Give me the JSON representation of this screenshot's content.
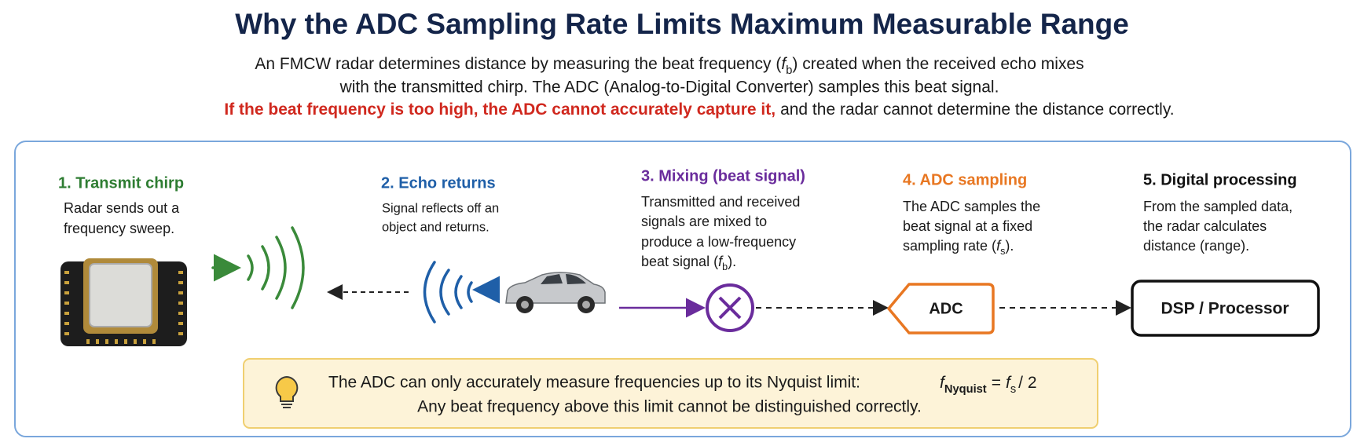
{
  "header": {
    "title": "Why the ADC Sampling Rate Limits Maximum Measurable Range",
    "intro": {
      "line1": {
        "before": "An FMCW radar determines distance by measuring the beat frequency (",
        "symbol": "f",
        "subscript": "b",
        "after": ") created when the received echo mixes"
      },
      "line2": "with the transmitted chirp. The ADC (Analog-to-Digital Converter) samples this beat signal.",
      "line3": {
        "warning": "If the beat frequency is too high, the ADC cannot accurately capture it,",
        "rest": "and the radar cannot determine the distance correctly."
      }
    }
  },
  "steps": [
    {
      "title": "1. Transmit chirp",
      "description": [
        "Radar sends out a",
        "frequency sweep."
      ]
    },
    {
      "title": "2. Echo returns",
      "description": [
        "Signal reflects off an",
        "object and returns."
      ]
    },
    {
      "title": "3. Mixing (beat signal)",
      "description": [
        "Transmitted and received",
        "signals are mixed to",
        "produce a low-frequency",
        {
          "before": "beat signal (",
          "symbol": "f",
          "subscript": "b",
          "after": ")."
        }
      ]
    },
    {
      "title": "4. ADC sampling",
      "description": [
        "The ADC samples the",
        "beat signal at a fixed",
        {
          "before": "sampling rate (",
          "symbol": "f",
          "subscript": "s",
          "after": ")."
        }
      ]
    },
    {
      "title": "5. Digital processing",
      "description": [
        "From the sampled data,",
        "the radar calculates",
        "distance (range)."
      ]
    }
  ],
  "blocks": {
    "adc": "ADC",
    "processor": "DSP / Processor"
  },
  "note": {
    "line1": "The ADC can only accurately measure frequencies up to its Nyquist limit:",
    "formula": {
      "lhs_symbol": "f",
      "lhs_subscript": "Nyquist",
      "operator": "=",
      "rhs_symbol": "f",
      "rhs_subscript": "s",
      "rhs_rest": "/ 2"
    },
    "line2": "Any beat frequency above this limit cannot be distinguished correctly."
  }
}
